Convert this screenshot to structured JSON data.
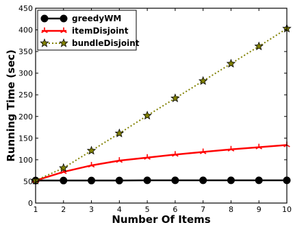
{
  "chart_data": {
    "type": "line",
    "xlabel": "Number Of Items",
    "ylabel": "Running Time (sec)",
    "x": [
      1,
      2,
      3,
      4,
      5,
      6,
      7,
      8,
      9,
      10
    ],
    "xlim": [
      1,
      10
    ],
    "ylim": [
      0,
      450
    ],
    "xticks": [
      1,
      2,
      3,
      4,
      5,
      6,
      7,
      8,
      9,
      10
    ],
    "yticks": [
      0,
      50,
      100,
      150,
      200,
      250,
      300,
      350,
      400,
      450
    ],
    "grid": false,
    "legend_position": "top-left",
    "series": [
      {
        "name": "greedyWM",
        "values": [
          52,
          52,
          52,
          52,
          52.5,
          52.5,
          52.5,
          52.5,
          52.5,
          52.5
        ],
        "color": "#000000",
        "line_style": "solid",
        "marker": "circle"
      },
      {
        "name": "itemDisjoint",
        "values": [
          52,
          72,
          87,
          98,
          105,
          112,
          118,
          124,
          129,
          134
        ],
        "color": "#ff0000",
        "line_style": "solid",
        "marker": "tri"
      },
      {
        "name": "bundleDisjoint",
        "values": [
          52,
          81,
          121,
          161,
          202,
          242,
          282,
          322,
          362,
          403
        ],
        "color": "#808000",
        "line_style": "dotted",
        "marker": "star"
      }
    ]
  }
}
